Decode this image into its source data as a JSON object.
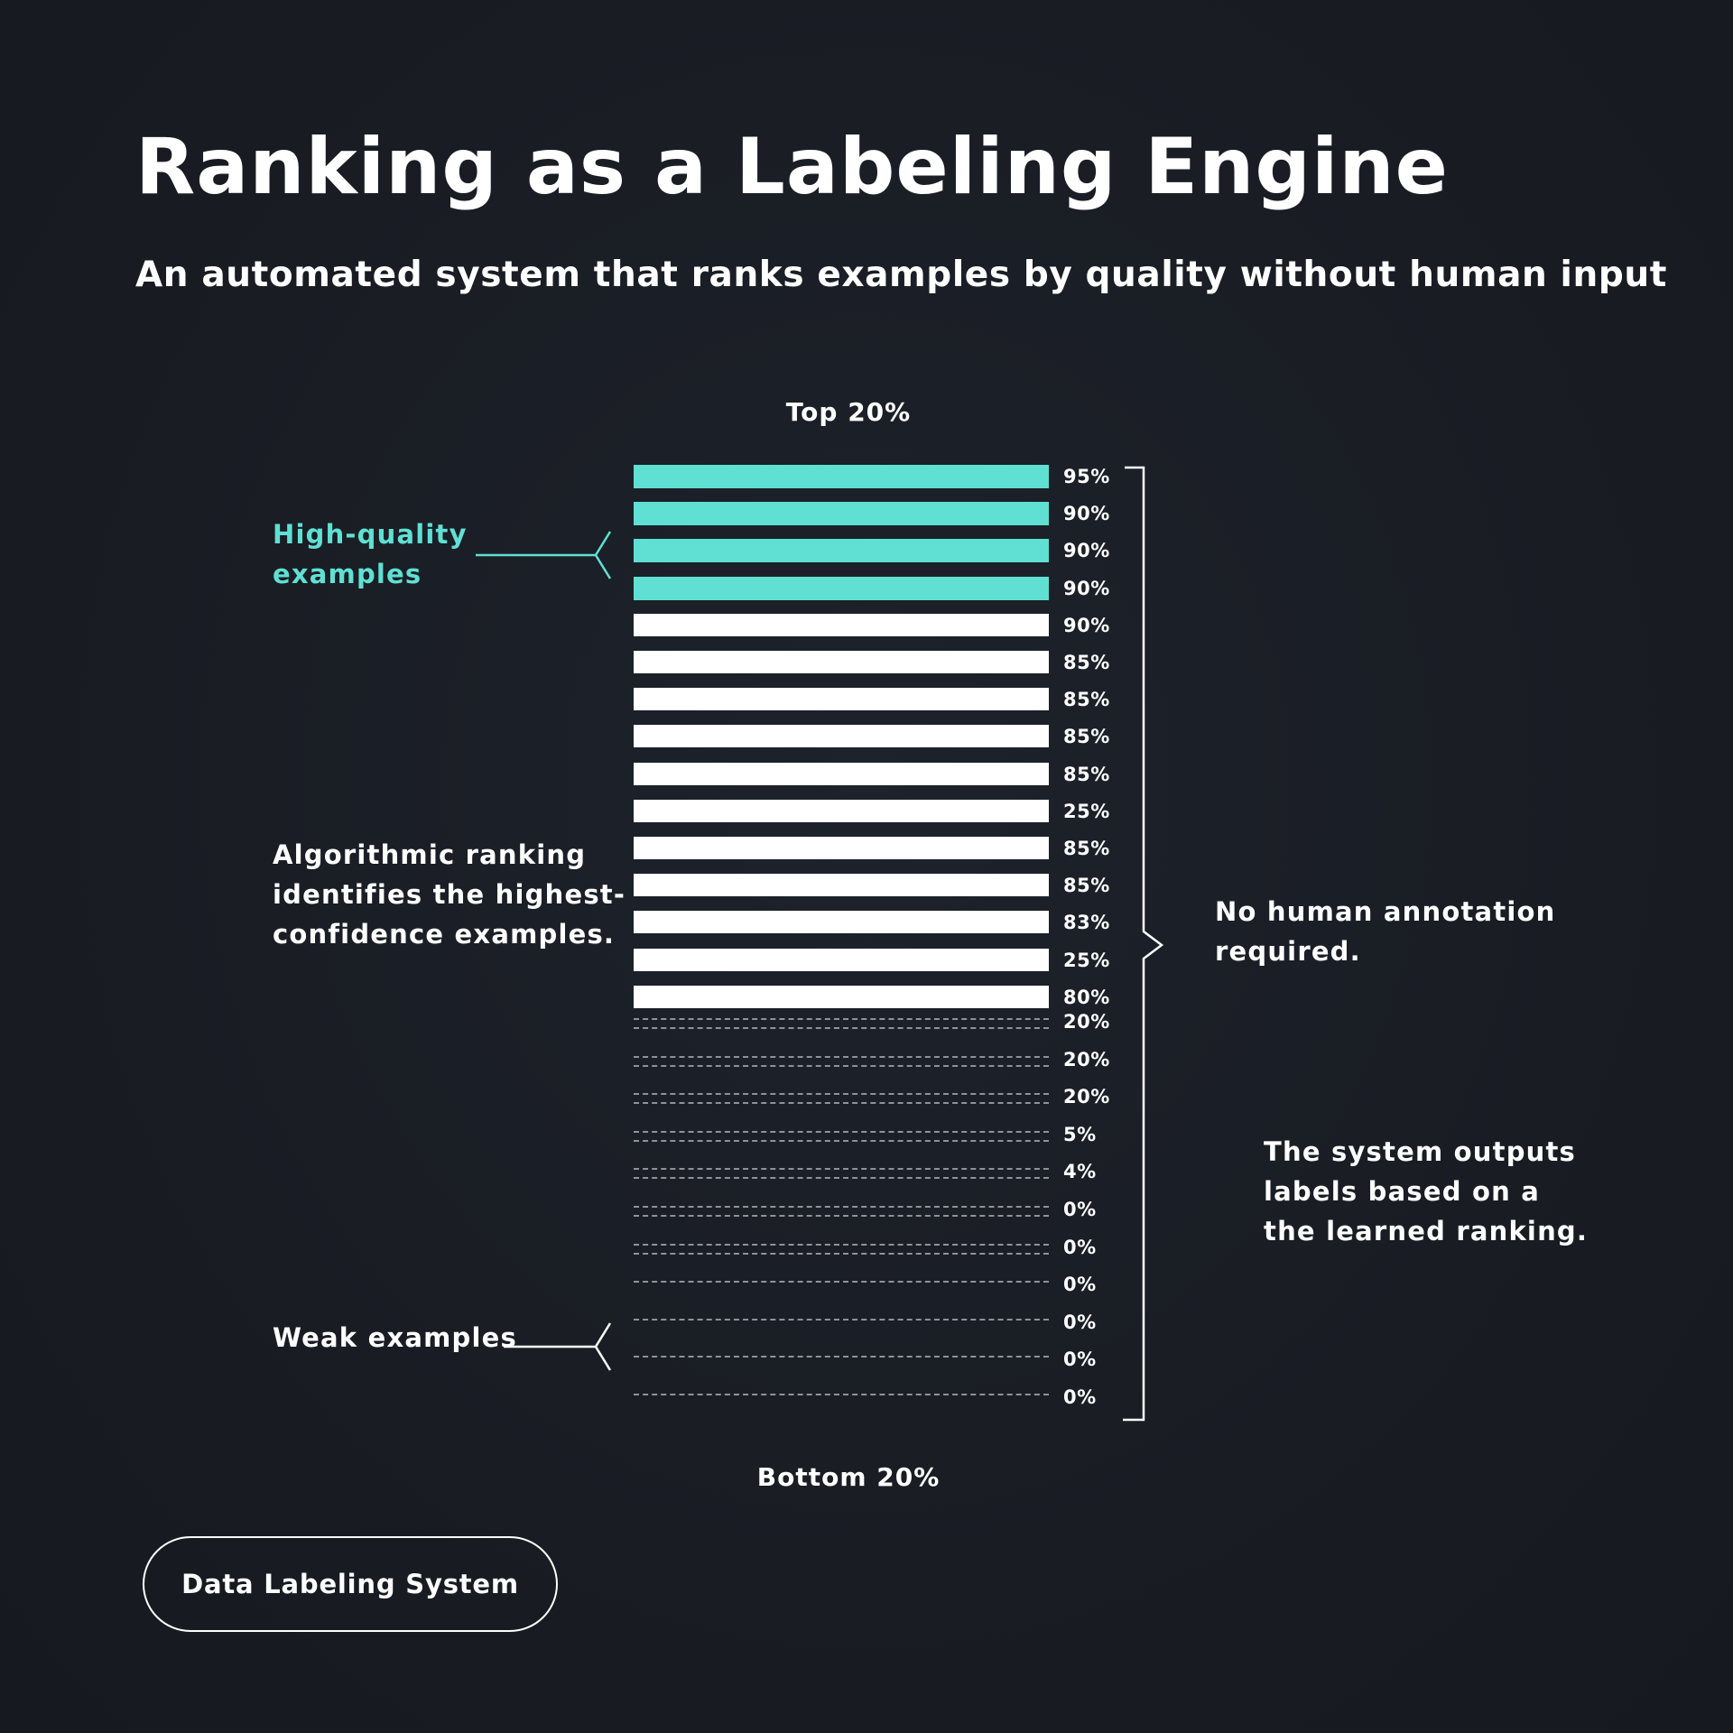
{
  "title": "Ranking as a Labeling Engine",
  "subtitle": "An automated system that ranks examples by quality without human input",
  "top_label": "Top 20%",
  "bottom_label": "Bottom 20%",
  "colors": {
    "background": "#1a1e26",
    "high_quality": "#5fe0d3",
    "mid": "#ffffff",
    "weak": "#8e939b"
  },
  "chart_data": {
    "type": "bar",
    "rows": [
      {
        "label": "95%",
        "tier": "high"
      },
      {
        "label": "90%",
        "tier": "high"
      },
      {
        "label": "90%",
        "tier": "high"
      },
      {
        "label": "90%",
        "tier": "high"
      },
      {
        "label": "90%",
        "tier": "mid"
      },
      {
        "label": "85%",
        "tier": "mid"
      },
      {
        "label": "85%",
        "tier": "mid"
      },
      {
        "label": "85%",
        "tier": "mid"
      },
      {
        "label": "85%",
        "tier": "mid"
      },
      {
        "label": "25%",
        "tier": "mid"
      },
      {
        "label": "85%",
        "tier": "mid"
      },
      {
        "label": "85%",
        "tier": "mid"
      },
      {
        "label": "83%",
        "tier": "mid"
      },
      {
        "label": "25%",
        "tier": "mid"
      },
      {
        "label": "80%",
        "tier": "mid"
      },
      {
        "label": "20%",
        "tier": "weak"
      },
      {
        "label": "20%",
        "tier": "weak"
      },
      {
        "label": "20%",
        "tier": "weak"
      },
      {
        "label": "5%",
        "tier": "weak"
      },
      {
        "label": "4%",
        "tier": "weak"
      },
      {
        "label": "0%",
        "tier": "weak"
      },
      {
        "label": "0%",
        "tier": "weak"
      },
      {
        "label": "0%",
        "tier": "weak"
      },
      {
        "label": "0%",
        "tier": "weak"
      },
      {
        "label": "0%",
        "tier": "weak"
      },
      {
        "label": "0%",
        "tier": "weak"
      }
    ]
  },
  "callouts": {
    "high_quality": [
      "High-quality",
      "examples"
    ],
    "algorithmic": [
      "Algorithmic ranking",
      "identifies the highest-",
      "confidence examples."
    ],
    "weak": [
      "Weak examples"
    ],
    "no_human": [
      "No human annotation",
      "required."
    ],
    "system_outputs": [
      "The system outputs",
      "labels based on a",
      "the learned ranking."
    ]
  },
  "footer_button": "Data Labeling System"
}
